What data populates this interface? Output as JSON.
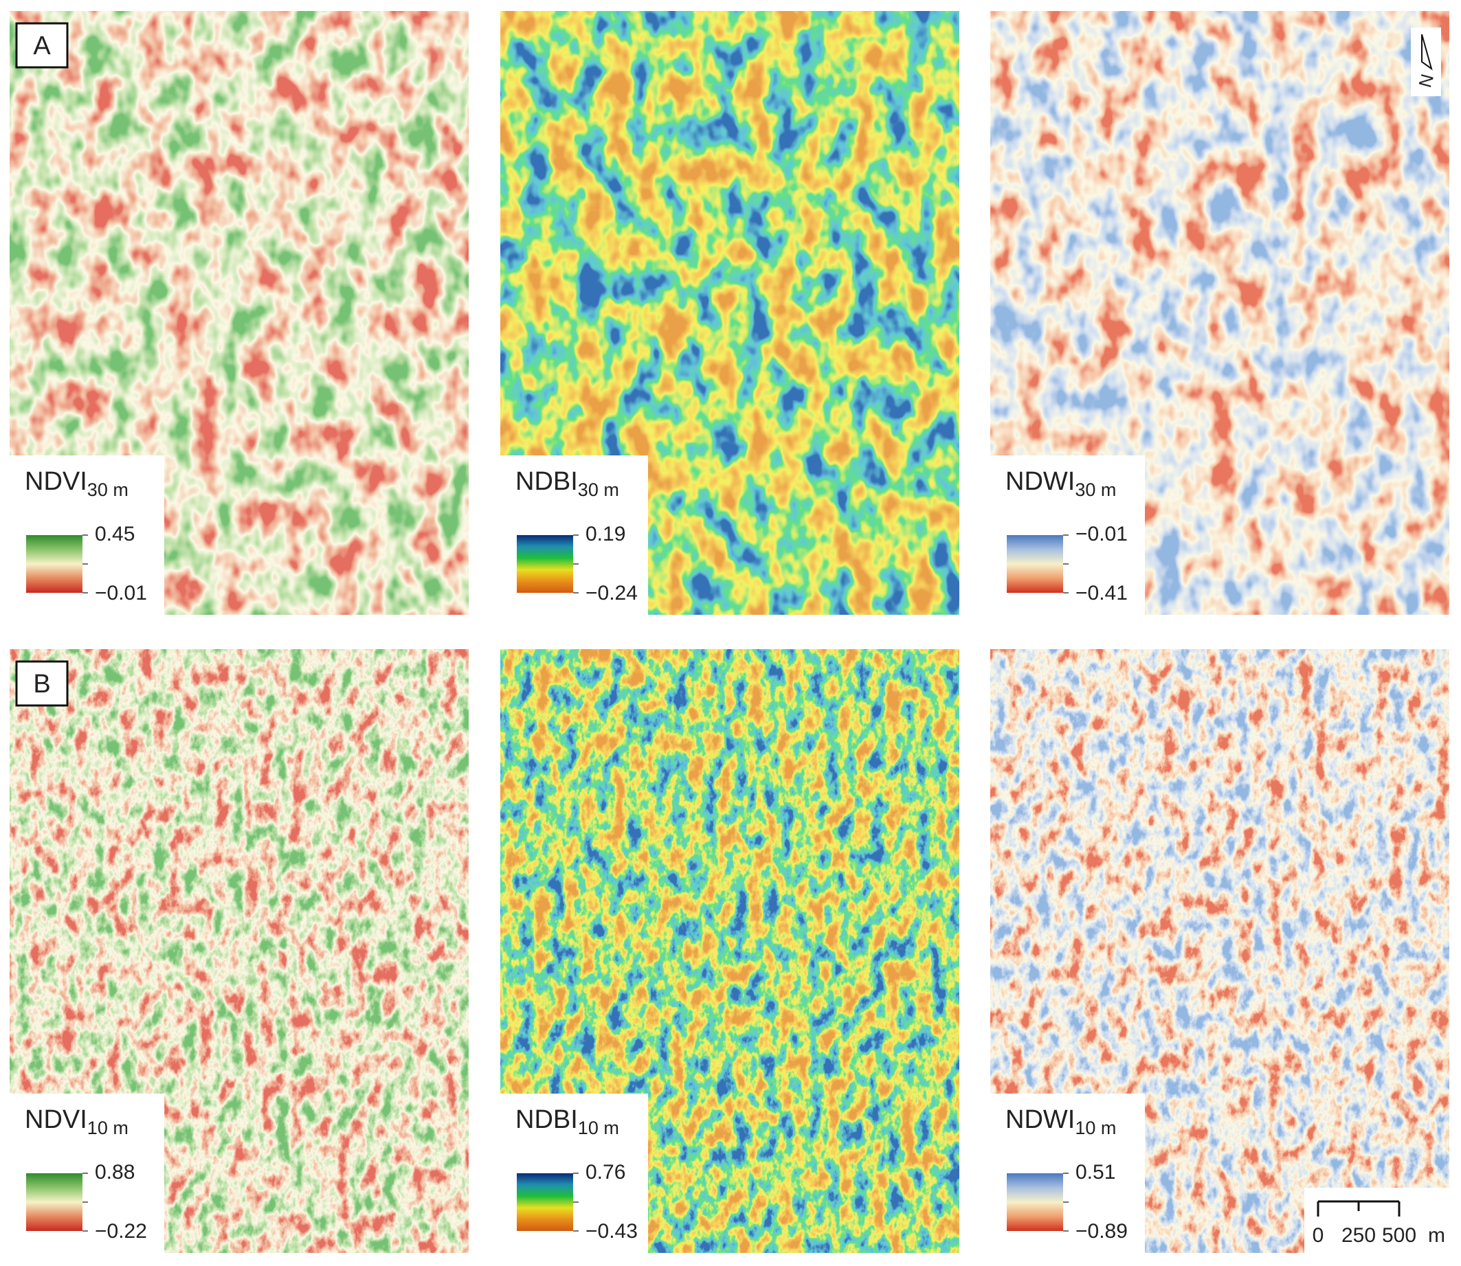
{
  "panels": [
    {
      "label": "A",
      "maps": [
        {
          "index": "NDVI",
          "resolution": "30 m",
          "max": "0.45",
          "min": "−0.01"
        },
        {
          "index": "NDBI",
          "resolution": "30 m",
          "max": "0.19",
          "min": "−0.24"
        },
        {
          "index": "NDWI",
          "resolution": "30 m",
          "max": "−0.01",
          "min": "−0.41"
        }
      ]
    },
    {
      "label": "B",
      "maps": [
        {
          "index": "NDVI",
          "resolution": "10 m",
          "max": "0.88",
          "min": "−0.22"
        },
        {
          "index": "NDBI",
          "resolution": "10 m",
          "max": "0.76",
          "min": "−0.43"
        },
        {
          "index": "NDWI",
          "resolution": "10 m",
          "max": "0.51",
          "min": "−0.89"
        }
      ]
    }
  ],
  "north_arrow": "N",
  "scale_bar": {
    "ticks": [
      "0",
      "250",
      "500"
    ],
    "unit": "m"
  }
}
